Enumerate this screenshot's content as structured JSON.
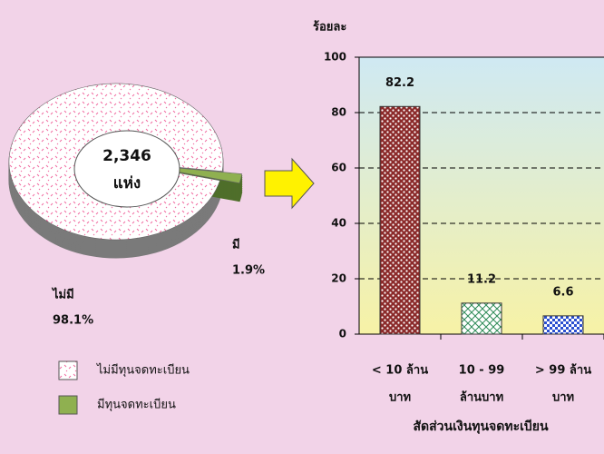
{
  "chart_data": [
    {
      "type": "pie",
      "center_text": [
        "2,346",
        "แห่ง"
      ],
      "categories": [
        "ไม่มี",
        "มี"
      ],
      "values": [
        98.1,
        1.9
      ],
      "value_labels": [
        "98.1%",
        "1.9%"
      ],
      "legend": [
        "ไม่มีทุนจดทะเบียน",
        "มีทุนจดทะเบียน"
      ],
      "colors": [
        "#f06aa0",
        "#8fb050"
      ]
    },
    {
      "type": "bar",
      "title": "สัดส่วนเงินทุนจดทะเบียน",
      "ylabel": "ร้อยละ",
      "categories": [
        [
          "< 10 ล้าน",
          "บาท"
        ],
        [
          "10 - 99",
          "ล้านบาท"
        ],
        [
          "> 99 ล้าน",
          "บาท"
        ]
      ],
      "values": [
        82.2,
        11.2,
        6.6
      ],
      "colors": [
        "#8b2a2a",
        "#2e8b57",
        "#2a4fd0"
      ],
      "ylim": [
        0,
        100
      ],
      "yticks": [
        0,
        20,
        40,
        60,
        80,
        100
      ],
      "grid": true
    }
  ]
}
